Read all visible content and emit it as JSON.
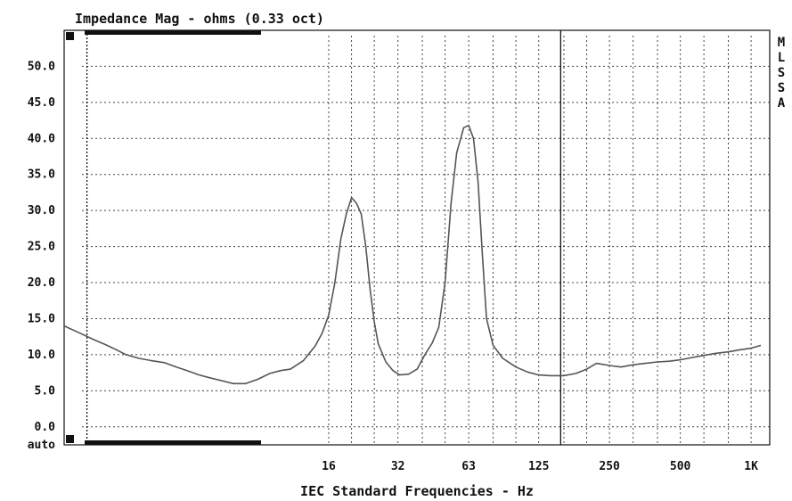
{
  "chart_data": {
    "type": "line",
    "title": "Impedance Mag - ohms (0.33 oct)",
    "xlabel": "IEC Standard Frequencies - Hz",
    "ylabel": "",
    "x_scale": "log",
    "xlim": [
      1.2,
      1200
    ],
    "ylim": [
      -2.5,
      55
    ],
    "y_ticks": [
      {
        "value": 50,
        "label": "50.0"
      },
      {
        "value": 45,
        "label": "45.0"
      },
      {
        "value": 40,
        "label": "40.0"
      },
      {
        "value": 35,
        "label": "35.0"
      },
      {
        "value": 30,
        "label": "30.0"
      },
      {
        "value": 25,
        "label": "25.0"
      },
      {
        "value": 20,
        "label": "20.0"
      },
      {
        "value": 15,
        "label": "15.0"
      },
      {
        "value": 10,
        "label": "10.0"
      },
      {
        "value": 5,
        "label": "5.0"
      },
      {
        "value": 0,
        "label": "0.0"
      },
      {
        "value": -2.5,
        "label": "auto"
      }
    ],
    "x_ticks": [
      {
        "value": 16,
        "label": "16"
      },
      {
        "value": 31.5,
        "label": "32"
      },
      {
        "value": 63,
        "label": "63"
      },
      {
        "value": 125,
        "label": "125"
      },
      {
        "value": 250,
        "label": "250"
      },
      {
        "value": 500,
        "label": "500"
      },
      {
        "value": 1000,
        "label": "1K"
      }
    ],
    "x_grid": [
      16,
      20,
      25,
      31.5,
      40,
      50,
      63,
      80,
      100,
      125,
      160,
      200,
      250,
      315,
      400,
      500,
      630,
      800,
      1000
    ],
    "cursor_x": 155,
    "marker_x": 1.5,
    "side_label": [
      "M",
      "L",
      "S",
      "S",
      "A"
    ],
    "grid": true,
    "series": [
      {
        "color": "#555555",
        "points": [
          [
            1.2,
            14.0
          ],
          [
            1.4,
            13.0
          ],
          [
            1.6,
            12.1
          ],
          [
            1.8,
            11.4
          ],
          [
            2.0,
            10.7
          ],
          [
            2.2,
            10.0
          ],
          [
            2.5,
            9.5
          ],
          [
            2.8,
            9.2
          ],
          [
            3.2,
            8.9
          ],
          [
            3.6,
            8.3
          ],
          [
            4.0,
            7.8
          ],
          [
            4.5,
            7.2
          ],
          [
            5.0,
            6.8
          ],
          [
            5.6,
            6.4
          ],
          [
            6.3,
            6.0
          ],
          [
            7.1,
            6.0
          ],
          [
            8.0,
            6.6
          ],
          [
            9.0,
            7.4
          ],
          [
            10.0,
            7.8
          ],
          [
            11.0,
            8.0
          ],
          [
            12.5,
            9.2
          ],
          [
            14.0,
            11.2
          ],
          [
            15.0,
            13.0
          ],
          [
            16.0,
            15.5
          ],
          [
            17.0,
            20.0
          ],
          [
            18.0,
            26.0
          ],
          [
            19.0,
            29.5
          ],
          [
            20.0,
            31.8
          ],
          [
            21.0,
            31.0
          ],
          [
            22.0,
            29.5
          ],
          [
            23.0,
            25.0
          ],
          [
            24.0,
            19.0
          ],
          [
            25.0,
            14.5
          ],
          [
            26.0,
            11.5
          ],
          [
            28.0,
            9.0
          ],
          [
            30.0,
            7.8
          ],
          [
            32.0,
            7.2
          ],
          [
            35.0,
            7.3
          ],
          [
            38.0,
            8.0
          ],
          [
            41.0,
            10.0
          ],
          [
            44.0,
            11.6
          ],
          [
            47.0,
            13.8
          ],
          [
            50.0,
            20.0
          ],
          [
            53.0,
            31.0
          ],
          [
            56.0,
            38.0
          ],
          [
            60.0,
            41.5
          ],
          [
            63.0,
            41.8
          ],
          [
            66.0,
            40.0
          ],
          [
            69.0,
            34.0
          ],
          [
            72.0,
            24.0
          ],
          [
            75.0,
            15.0
          ],
          [
            80.0,
            11.3
          ],
          [
            88.0,
            9.5
          ],
          [
            100.0,
            8.3
          ],
          [
            112.0,
            7.6
          ],
          [
            125.0,
            7.2
          ],
          [
            140.0,
            7.1
          ],
          [
            160.0,
            7.1
          ],
          [
            180.0,
            7.4
          ],
          [
            200.0,
            8.0
          ],
          [
            220.0,
            8.8
          ],
          [
            250.0,
            8.5
          ],
          [
            280.0,
            8.3
          ],
          [
            315.0,
            8.6
          ],
          [
            355.0,
            8.8
          ],
          [
            400.0,
            9.0
          ],
          [
            450.0,
            9.1
          ],
          [
            500.0,
            9.3
          ],
          [
            560.0,
            9.6
          ],
          [
            630.0,
            9.9
          ],
          [
            710.0,
            10.2
          ],
          [
            800.0,
            10.4
          ],
          [
            900.0,
            10.7
          ],
          [
            1000.0,
            10.9
          ],
          [
            1100.0,
            11.3
          ]
        ]
      }
    ]
  }
}
